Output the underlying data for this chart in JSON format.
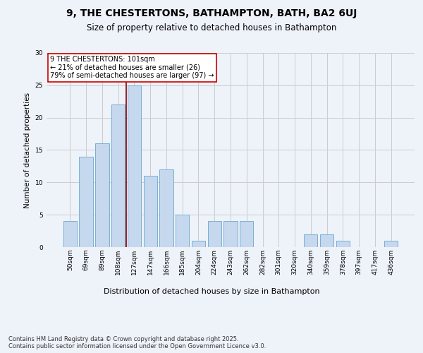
{
  "title1": "9, THE CHESTERTONS, BATHAMPTON, BATH, BA2 6UJ",
  "title2": "Size of property relative to detached houses in Bathampton",
  "xlabel": "Distribution of detached houses by size in Bathampton",
  "ylabel": "Number of detached properties",
  "footer": "Contains HM Land Registry data © Crown copyright and database right 2025.\nContains public sector information licensed under the Open Government Licence v3.0.",
  "bin_labels": [
    "50sqm",
    "69sqm",
    "89sqm",
    "108sqm",
    "127sqm",
    "147sqm",
    "166sqm",
    "185sqm",
    "204sqm",
    "224sqm",
    "243sqm",
    "262sqm",
    "282sqm",
    "301sqm",
    "320sqm",
    "340sqm",
    "359sqm",
    "378sqm",
    "397sqm",
    "417sqm",
    "436sqm"
  ],
  "bin_values": [
    4,
    14,
    16,
    22,
    25,
    11,
    12,
    5,
    1,
    4,
    4,
    4,
    0,
    0,
    0,
    2,
    2,
    1,
    0,
    0,
    1
  ],
  "bar_color": "#c5d8ed",
  "bar_edge_color": "#7aafd4",
  "vline_x": 3.5,
  "vline_color": "#8b0000",
  "annotation_text": "9 THE CHESTERTONS: 101sqm\n← 21% of detached houses are smaller (26)\n79% of semi-detached houses are larger (97) →",
  "annotation_box_color": "#ffffff",
  "annotation_box_edge": "#cc0000",
  "ylim": [
    0,
    30
  ],
  "yticks": [
    0,
    5,
    10,
    15,
    20,
    25,
    30
  ],
  "grid_color": "#cccccc",
  "bg_color": "#eef2f9",
  "title1_fontsize": 10,
  "title2_fontsize": 8.5,
  "ylabel_fontsize": 7.5,
  "xlabel_fontsize": 8,
  "tick_fontsize": 6.5,
  "annotation_fontsize": 7,
  "footer_fontsize": 6
}
